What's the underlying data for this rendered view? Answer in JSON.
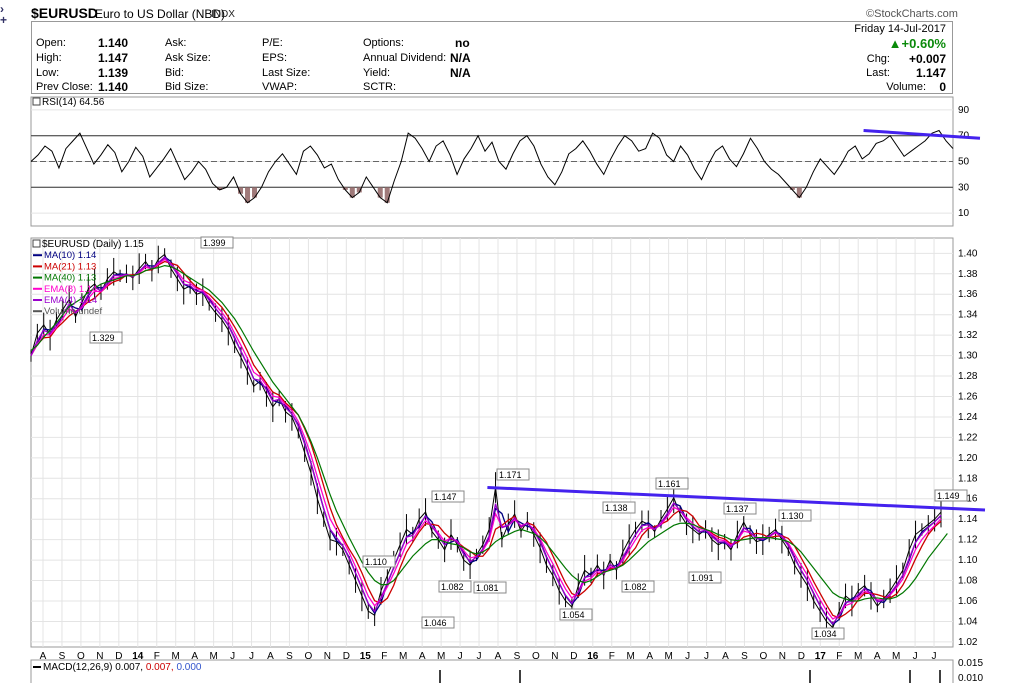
{
  "header": {
    "symbol": "$EURUSD",
    "name": "Euro to US Dollar (NBD)",
    "exchange": "INDX",
    "watermark": "©StockCharts.com",
    "date": "Friday  14-Jul-2017",
    "change_pct": "▲+0.60%",
    "nav_icons": [
      "chevron-right-icon",
      "plus-icon"
    ]
  },
  "quote": {
    "open_label": "Open:",
    "open": "1.140",
    "high_label": "High:",
    "high": "1.147",
    "low_label": "Low:",
    "low": "1.139",
    "prev_label": "Prev Close:",
    "prev": "1.140",
    "ask_label": "Ask:",
    "asksize_label": "Ask Size:",
    "bid_label": "Bid:",
    "bidsize_label": "Bid Size:",
    "pe_label": "P/E:",
    "eps_label": "EPS:",
    "lastsize_label": "Last Size:",
    "vwap_label": "VWAP:",
    "options_label": "Options:",
    "options": "no",
    "div_label": "Annual Dividend:",
    "div": "N/A",
    "yield_label": "Yield:",
    "yield": "N/A",
    "sctr_label": "SCTR:",
    "chg_label": "Chg:",
    "chg": "+0.007",
    "last_label": "Last:",
    "last": "1.147",
    "volume_label": "Volume:",
    "volume": "0"
  },
  "chart_data": [
    {
      "type": "line",
      "title": "RSI(14) 64.56",
      "ylim": [
        0,
        100
      ],
      "yticks": [
        10,
        30,
        50,
        70,
        90
      ],
      "reference_lines": [
        30,
        50,
        70
      ],
      "series": [
        {
          "values": [
            50,
            55,
            62,
            58,
            45,
            60,
            66,
            72,
            60,
            48,
            55,
            63,
            57,
            42,
            50,
            61,
            54,
            38,
            45,
            52,
            60,
            48,
            36,
            42,
            50,
            44,
            33,
            28,
            30,
            38,
            25,
            18,
            22,
            30,
            42,
            50,
            56,
            48,
            40,
            58,
            62,
            55,
            45,
            48,
            36,
            28,
            22,
            26,
            38,
            30,
            22,
            18,
            35,
            50,
            72,
            68,
            60,
            50,
            62,
            66,
            55,
            40,
            52,
            60,
            70,
            58,
            65,
            50,
            44,
            56,
            66,
            70,
            62,
            48,
            38,
            32,
            42,
            56,
            60,
            66,
            58,
            48,
            40,
            52,
            62,
            70,
            66,
            58,
            60,
            72,
            68,
            55,
            50,
            62,
            55,
            44,
            36,
            48,
            58,
            62,
            52,
            46,
            56,
            68,
            60,
            50,
            44,
            40,
            34,
            28,
            22,
            30,
            42,
            52,
            46,
            40,
            48,
            58,
            62,
            52,
            56,
            64,
            66,
            70,
            62,
            54,
            58,
            62,
            66,
            72,
            74,
            66,
            60
          ]
        }
      ],
      "trendline": {
        "from": [
          0.903,
          74
        ],
        "to": [
          1.0,
          68
        ]
      }
    },
    {
      "type": "line",
      "title": "$EURUSD (Daily) 1.15",
      "ylim": [
        1.015,
        1.415
      ],
      "yticks": [
        1.02,
        1.04,
        1.06,
        1.08,
        1.1,
        1.12,
        1.14,
        1.16,
        1.18,
        1.2,
        1.22,
        1.24,
        1.26,
        1.28,
        1.3,
        1.32,
        1.34,
        1.36,
        1.38,
        1.4
      ],
      "xticks": [
        "A",
        "S",
        "O",
        "N",
        "D",
        "14",
        "F",
        "M",
        "A",
        "M",
        "J",
        "J",
        "A",
        "S",
        "O",
        "N",
        "D",
        "15",
        "F",
        "M",
        "A",
        "M",
        "J",
        "J",
        "A",
        "S",
        "O",
        "N",
        "D",
        "16",
        "F",
        "M",
        "A",
        "M",
        "J",
        "J",
        "A",
        "S",
        "O",
        "N",
        "D",
        "17",
        "F",
        "M",
        "A",
        "M",
        "J",
        "J"
      ],
      "legend": [
        {
          "name": "$EURUSD (Daily) 1.15",
          "color": "#000000"
        },
        {
          "name": "MA(10) 1.14",
          "color": "#000080"
        },
        {
          "name": "MA(21) 1.13",
          "color": "#cc0000"
        },
        {
          "name": "MA(40) 1.13",
          "color": "#007700"
        },
        {
          "name": "EMA(8) 1.14",
          "color": "#ff00cc"
        },
        {
          "name": "EMA(4) 1.14",
          "color": "#9900cc"
        },
        {
          "name": "Volume undef",
          "color": "#555555"
        }
      ],
      "series": [
        {
          "name": "$EURUSD (Daily) 1.15",
          "values": [
            1.3,
            1.322,
            1.33,
            1.32,
            1.335,
            1.345,
            1.355,
            1.338,
            1.352,
            1.365,
            1.37,
            1.362,
            1.375,
            1.382,
            1.378,
            1.38,
            1.376,
            1.385,
            1.392,
            1.383,
            1.394,
            1.399,
            1.385,
            1.375,
            1.365,
            1.368,
            1.36,
            1.362,
            1.35,
            1.342,
            1.335,
            1.325,
            1.31,
            1.298,
            1.285,
            1.27,
            1.275,
            1.262,
            1.25,
            1.258,
            1.245,
            1.24,
            1.225,
            1.205,
            1.185,
            1.16,
            1.14,
            1.12,
            1.118,
            1.11,
            1.095,
            1.08,
            1.065,
            1.05,
            1.046,
            1.07,
            1.085,
            1.1,
            1.115,
            1.13,
            1.125,
            1.14,
            1.147,
            1.128,
            1.12,
            1.11,
            1.125,
            1.115,
            1.1,
            1.095,
            1.105,
            1.115,
            1.13,
            1.171,
            1.12,
            1.135,
            1.145,
            1.128,
            1.138,
            1.125,
            1.112,
            1.095,
            1.085,
            1.07,
            1.06,
            1.054,
            1.075,
            1.09,
            1.085,
            1.095,
            1.085,
            1.1,
            1.09,
            1.108,
            1.12,
            1.13,
            1.138,
            1.135,
            1.128,
            1.14,
            1.15,
            1.161,
            1.145,
            1.135,
            1.13,
            1.125,
            1.13,
            1.12,
            1.115,
            1.118,
            1.11,
            1.125,
            1.137,
            1.125,
            1.118,
            1.12,
            1.125,
            1.13,
            1.12,
            1.11,
            1.095,
            1.085,
            1.075,
            1.06,
            1.05,
            1.04,
            1.034,
            1.05,
            1.065,
            1.06,
            1.07,
            1.075,
            1.065,
            1.055,
            1.062,
            1.07,
            1.08,
            1.09,
            1.11,
            1.125,
            1.13,
            1.135,
            1.14,
            1.147
          ]
        },
        {
          "name": "MA(40) 1.13",
          "values": [
            1.305,
            1.31,
            1.318,
            1.325,
            1.332,
            1.34,
            1.348,
            1.352,
            1.356,
            1.362,
            1.366,
            1.37,
            1.372,
            1.374,
            1.376,
            1.378,
            1.378,
            1.38,
            1.383,
            1.385,
            1.386,
            1.388,
            1.387,
            1.384,
            1.38,
            1.376,
            1.372,
            1.368,
            1.364,
            1.358,
            1.352,
            1.344,
            1.336,
            1.326,
            1.315,
            1.304,
            1.294,
            1.284,
            1.274,
            1.266,
            1.258,
            1.25,
            1.242,
            1.23,
            1.216,
            1.2,
            1.182,
            1.164,
            1.148,
            1.135,
            1.122,
            1.11,
            1.098,
            1.088,
            1.08,
            1.076,
            1.076,
            1.08,
            1.088,
            1.096,
            1.104,
            1.11,
            1.116,
            1.12,
            1.12,
            1.118,
            1.116,
            1.115,
            1.112,
            1.108,
            1.106,
            1.108,
            1.112,
            1.118,
            1.122,
            1.125,
            1.128,
            1.13,
            1.128,
            1.126,
            1.122,
            1.116,
            1.108,
            1.1,
            1.092,
            1.085,
            1.08,
            1.078,
            1.08,
            1.084,
            1.088,
            1.09,
            1.092,
            1.095,
            1.1,
            1.106,
            1.112,
            1.118,
            1.122,
            1.126,
            1.13,
            1.134,
            1.136,
            1.136,
            1.135,
            1.132,
            1.13,
            1.128,
            1.125,
            1.123,
            1.12,
            1.119,
            1.12,
            1.121,
            1.122,
            1.122,
            1.122,
            1.121,
            1.12,
            1.118,
            1.114,
            1.108,
            1.1,
            1.092,
            1.084,
            1.076,
            1.068,
            1.064,
            1.062,
            1.06,
            1.06,
            1.062,
            1.063,
            1.063,
            1.062,
            1.062,
            1.064,
            1.068,
            1.074,
            1.082,
            1.092,
            1.102,
            1.11,
            1.118,
            1.126
          ]
        }
      ],
      "annotations": [
        "1.329",
        "1.399",
        "1.110",
        "1.046",
        "1.147",
        "1.082",
        "1.081",
        "1.171",
        "1.054",
        "1.138",
        "1.082",
        "1.161",
        "1.091",
        "1.137",
        "1.130",
        "1.034",
        "1.149"
      ],
      "trendline": {
        "from": [
          0.495,
          1.171
        ],
        "to": [
          1.0,
          1.149
        ]
      }
    },
    {
      "type": "line",
      "title": "MACD(12,26,9)",
      "title_values": [
        "0.007",
        "0.007",
        "0.000"
      ],
      "yticks": [
        0.01,
        0.015
      ]
    }
  ]
}
